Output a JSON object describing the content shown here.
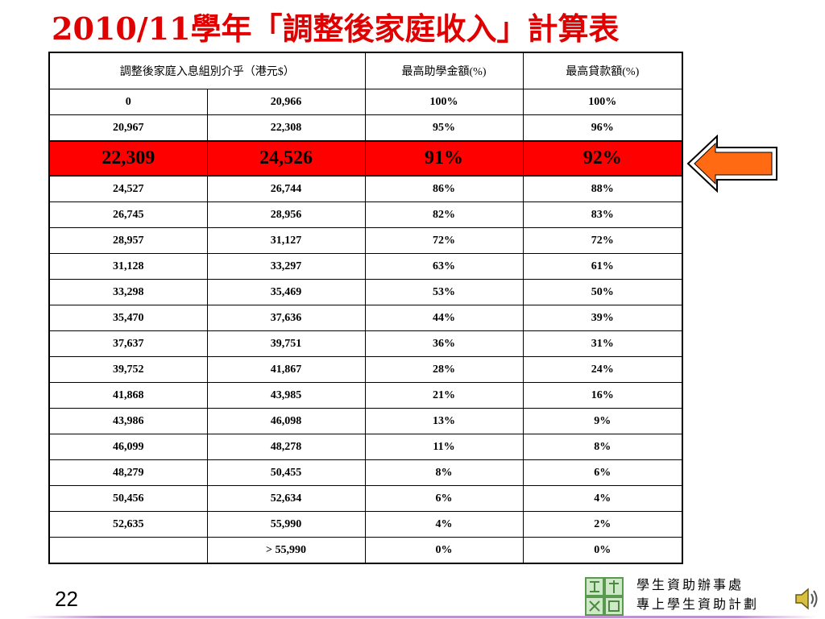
{
  "title": "2010/11學年「調整後家庭收入」計算表",
  "table": {
    "header": {
      "income_band": "調整後家庭入息組別介乎（港元$）",
      "grant": "最高助學金額(%)",
      "loan": "最高貸款額(%)"
    },
    "rows": [
      {
        "from": "0",
        "to": "20,966",
        "grant": "100%",
        "loan": "100%"
      },
      {
        "from": "20,967",
        "to": "22,308",
        "grant": "95%",
        "loan": "96%"
      },
      {
        "from": "22,309",
        "to": "24,526",
        "grant": "91%",
        "loan": "92%"
      },
      {
        "from": "24,527",
        "to": "26,744",
        "grant": "86%",
        "loan": "88%"
      },
      {
        "from": "26,745",
        "to": "28,956",
        "grant": "82%",
        "loan": "83%"
      },
      {
        "from": "28,957",
        "to": "31,127",
        "grant": "72%",
        "loan": "72%"
      },
      {
        "from": "31,128",
        "to": "33,297",
        "grant": "63%",
        "loan": "61%"
      },
      {
        "from": "33,298",
        "to": "35,469",
        "grant": "53%",
        "loan": "50%"
      },
      {
        "from": "35,470",
        "to": "37,636",
        "grant": "44%",
        "loan": "39%"
      },
      {
        "from": "37,637",
        "to": "39,751",
        "grant": "36%",
        "loan": "31%"
      },
      {
        "from": "39,752",
        "to": "41,867",
        "grant": "28%",
        "loan": "24%"
      },
      {
        "from": "41,868",
        "to": "43,985",
        "grant": "21%",
        "loan": "16%"
      },
      {
        "from": "43,986",
        "to": "46,098",
        "grant": "13%",
        "loan": "9%"
      },
      {
        "from": "46,099",
        "to": "48,278",
        "grant": "11%",
        "loan": "8%"
      },
      {
        "from": "48,279",
        "to": "50,455",
        "grant": "8%",
        "loan": "6%"
      },
      {
        "from": "50,456",
        "to": "52,634",
        "grant": "6%",
        "loan": "4%"
      },
      {
        "from": "52,635",
        "to": "55,990",
        "grant": "4%",
        "loan": "2%"
      },
      {
        "from": "",
        "to": "> 55,990",
        "grant": "0%",
        "loan": "0%"
      }
    ],
    "highlight_row_index": 2,
    "highlight_color": "#ff0000"
  },
  "arrow": {
    "icon": "left-arrow-icon",
    "fill": "#ff6a13"
  },
  "page_number": "22",
  "footer": {
    "org_line1": "學生資助辦事處",
    "org_line2": "專上學生資助計劃",
    "logo_icon": "sfo-logo-icon",
    "speaker_icon": "speaker-icon"
  },
  "colors": {
    "title": "#e00000",
    "footer_line": "#c090d0"
  }
}
